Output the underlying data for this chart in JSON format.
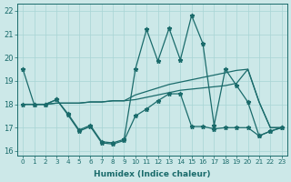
{
  "xlabel": "Humidex (Indice chaleur)",
  "xlim": [
    -0.5,
    23.5
  ],
  "ylim": [
    15.8,
    22.3
  ],
  "yticks": [
    16,
    17,
    18,
    19,
    20,
    21,
    22
  ],
  "xticks": [
    0,
    1,
    2,
    3,
    4,
    5,
    6,
    7,
    8,
    9,
    10,
    11,
    12,
    13,
    14,
    15,
    16,
    17,
    18,
    19,
    20,
    21,
    22,
    23
  ],
  "bg_color": "#cce8e8",
  "line_color": "#1a6b6b",
  "s1_y": [
    19.5,
    18.0,
    18.0,
    18.2,
    17.6,
    16.9,
    17.1,
    16.4,
    16.35,
    16.5,
    19.5,
    21.2,
    19.85,
    21.25,
    19.9,
    21.8,
    20.6,
    17.1,
    19.5,
    18.8,
    18.1,
    16.65,
    16.85,
    17.0
  ],
  "s2_y": [
    18.0,
    18.0,
    18.0,
    18.2,
    17.55,
    16.85,
    17.05,
    16.35,
    16.3,
    16.45,
    17.5,
    17.8,
    18.15,
    18.45,
    18.45,
    17.05,
    17.05,
    16.95,
    17.0,
    17.0,
    17.0,
    16.65,
    16.85,
    17.0
  ],
  "s3_y": [
    18.0,
    18.0,
    18.0,
    18.05,
    18.05,
    18.05,
    18.1,
    18.1,
    18.15,
    18.15,
    18.2,
    18.3,
    18.4,
    18.5,
    18.6,
    18.65,
    18.7,
    18.75,
    18.8,
    18.9,
    19.5,
    18.1,
    17.0,
    17.0
  ],
  "s4_y": [
    18.0,
    18.0,
    18.0,
    18.05,
    18.05,
    18.05,
    18.1,
    18.1,
    18.15,
    18.15,
    18.4,
    18.55,
    18.7,
    18.85,
    18.95,
    19.05,
    19.15,
    19.25,
    19.35,
    19.45,
    19.5,
    18.1,
    17.0,
    17.0
  ]
}
